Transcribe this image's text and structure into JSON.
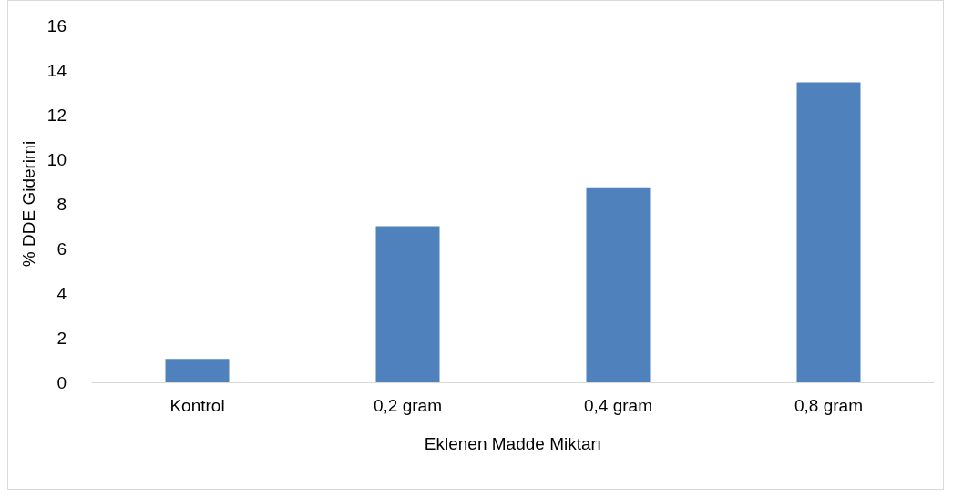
{
  "chart_data": {
    "type": "bar",
    "xlabel": "Eklenen Madde Miktarı",
    "ylabel": "% DDE Giderimi",
    "categories": [
      "Kontrol",
      "0,2 gram",
      "0,4 gram",
      "0,8 gram"
    ],
    "values": [
      1.05,
      7.0,
      8.75,
      13.45
    ],
    "color": "#4f81bd",
    "ylim": [
      0,
      16
    ],
    "yticks": [
      0,
      2,
      4,
      6,
      8,
      10,
      12,
      14,
      16
    ],
    "grid": false
  }
}
